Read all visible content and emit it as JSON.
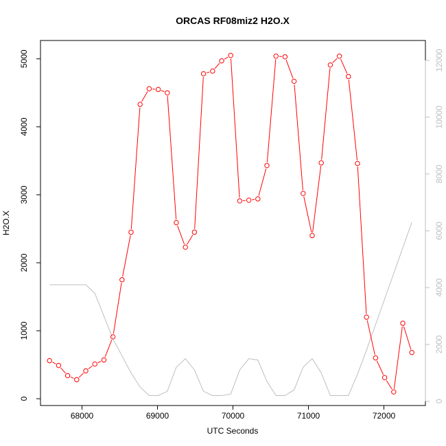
{
  "chart_data": {
    "type": "line",
    "title": "ORCAS RF08miz2 H2O.X",
    "xlabel": "UTC Seconds",
    "ylabel": "H2O.X",
    "xlim": [
      67450,
      72550
    ],
    "ylim": [
      -100,
      5270
    ],
    "y2lim": [
      -150,
      12700
    ],
    "x_ticks": [
      68000,
      69000,
      70000,
      71000,
      72000
    ],
    "y_ticks": [
      0,
      1000,
      2000,
      3000,
      4000,
      5000
    ],
    "y2_ticks": [
      0,
      2000,
      4000,
      6000,
      8000,
      10000,
      12000
    ],
    "grid": false,
    "series": [
      {
        "axis": "left",
        "color": "#ff0000",
        "marker": "open-circle",
        "x": [
          67570,
          67690,
          67810,
          67930,
          68050,
          68170,
          68290,
          68410,
          68530,
          68650,
          68770,
          68890,
          69010,
          69130,
          69250,
          69370,
          69490,
          69610,
          69730,
          69850,
          69970,
          70090,
          70210,
          70330,
          70450,
          70570,
          70690,
          70810,
          70930,
          71050,
          71170,
          71290,
          71410,
          71530,
          71650,
          71770,
          71890,
          72010,
          72130,
          72250,
          72370
        ],
        "y": [
          560,
          490,
          340,
          280,
          410,
          510,
          570,
          910,
          1750,
          2450,
          4330,
          4560,
          4550,
          4500,
          2590,
          2230,
          2450,
          4780,
          4820,
          4970,
          5050,
          2910,
          2920,
          2940,
          3430,
          5040,
          5030,
          4670,
          3020,
          2400,
          3470,
          4910,
          5040,
          4740,
          3460,
          1200,
          600,
          310,
          100,
          1110,
          680
        ]
      },
      {
        "axis": "right",
        "color": "#bebebe",
        "marker": "none",
        "x": [
          67570,
          67690,
          67810,
          67930,
          68050,
          68170,
          68290,
          68410,
          68530,
          68650,
          68770,
          68890,
          69010,
          69130,
          69250,
          69370,
          69490,
          69610,
          69730,
          69850,
          69970,
          70090,
          70210,
          70330,
          70450,
          70570,
          70690,
          70810,
          70930,
          71050,
          71170,
          71290,
          71410,
          71530,
          71650,
          71770,
          71890,
          72010,
          72130,
          72250,
          72370
        ],
        "y": [
          4100,
          4100,
          4100,
          4100,
          4100,
          3800,
          3000,
          2200,
          1600,
          1000,
          500,
          200,
          200,
          350,
          1200,
          1500,
          1100,
          350,
          200,
          200,
          250,
          1100,
          1500,
          1450,
          700,
          200,
          200,
          400,
          1200,
          1500,
          1000,
          200,
          200,
          200,
          950,
          1800,
          2700,
          3600,
          4500,
          5400,
          6300
        ]
      }
    ]
  }
}
